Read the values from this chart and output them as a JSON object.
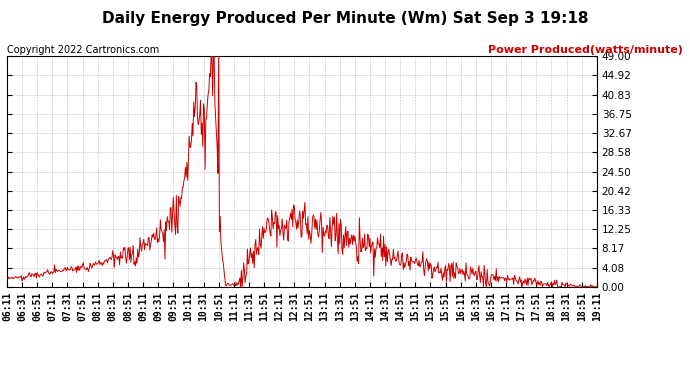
{
  "title": "Daily Energy Produced Per Minute (Wm) Sat Sep 3 19:18",
  "copyright_text": "Copyright 2022 Cartronics.com",
  "legend_label": "Power Produced(watts/minute)",
  "legend_color": "#cc0000",
  "line_color": "#cc0000",
  "background_color": "#ffffff",
  "grid_color": "#aaaaaa",
  "yticks": [
    0.0,
    4.08,
    8.17,
    12.25,
    16.33,
    20.42,
    24.5,
    28.58,
    32.67,
    36.75,
    40.83,
    44.92,
    49.0
  ],
  "ymin": 0.0,
  "ymax": 49.0,
  "xstart_minutes": 371,
  "xend_minutes": 1151,
  "xtick_interval": 20,
  "title_fontsize": 11,
  "tick_fontsize": 7,
  "copyright_fontsize": 7,
  "legend_fontsize": 8
}
